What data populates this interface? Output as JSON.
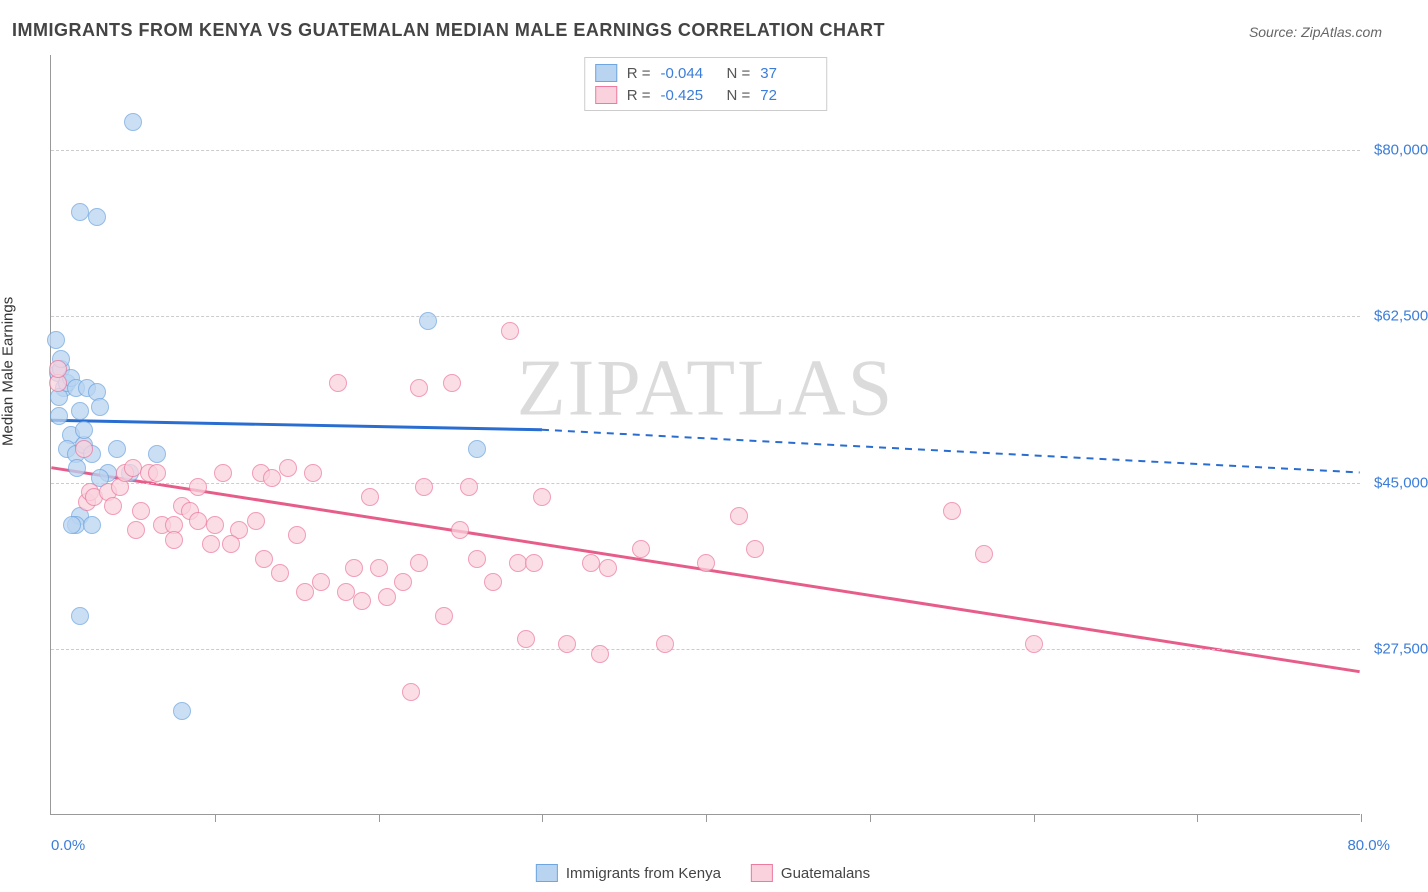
{
  "title": "IMMIGRANTS FROM KENYA VS GUATEMALAN MEDIAN MALE EARNINGS CORRELATION CHART",
  "source": "Source: ZipAtlas.com",
  "watermark": "ZIPATLAS",
  "y_axis_title": "Median Male Earnings",
  "chart": {
    "type": "scatter",
    "background_color": "#ffffff",
    "grid_color": "#cccccc",
    "axis_color": "#999999",
    "text_color": "#444444",
    "value_color": "#3b7dd8",
    "xlim": [
      0,
      80
    ],
    "ylim": [
      10000,
      90000
    ],
    "x_tick_step_pct": 10,
    "x_label_min": "0.0%",
    "x_label_max": "80.0%",
    "y_gridlines": [
      {
        "value": 27500,
        "label": "$27,500"
      },
      {
        "value": 45000,
        "label": "$45,000"
      },
      {
        "value": 62500,
        "label": "$62,500"
      },
      {
        "value": 80000,
        "label": "$80,000"
      }
    ],
    "series": [
      {
        "name": "Immigrants from Kenya",
        "fill_color": "#b9d4f1",
        "stroke_color": "#6fa6e0",
        "line_color": "#2a6dd0",
        "r_value": "-0.044",
        "n_value": "37",
        "trend": {
          "x1": 0,
          "y1": 51500,
          "x2": 30,
          "y2": 50500,
          "x2_dash": 80,
          "y2_dash": 46000
        },
        "marker_size": 18,
        "points": [
          {
            "x": 0.4,
            "y": 56500
          },
          {
            "x": 0.6,
            "y": 57000
          },
          {
            "x": 0.8,
            "y": 55000
          },
          {
            "x": 0.5,
            "y": 54000
          },
          {
            "x": 1.0,
            "y": 55500
          },
          {
            "x": 1.2,
            "y": 56000
          },
          {
            "x": 0.5,
            "y": 52000
          },
          {
            "x": 1.5,
            "y": 55000
          },
          {
            "x": 1.8,
            "y": 52500
          },
          {
            "x": 2.2,
            "y": 55000
          },
          {
            "x": 2.8,
            "y": 54500
          },
          {
            "x": 3.0,
            "y": 53000
          },
          {
            "x": 1.2,
            "y": 50000
          },
          {
            "x": 1.0,
            "y": 48500
          },
          {
            "x": 1.5,
            "y": 48000
          },
          {
            "x": 2.0,
            "y": 49000
          },
          {
            "x": 2.5,
            "y": 48000
          },
          {
            "x": 1.6,
            "y": 46500
          },
          {
            "x": 3.5,
            "y": 46000
          },
          {
            "x": 4.0,
            "y": 48500
          },
          {
            "x": 4.8,
            "y": 46000
          },
          {
            "x": 6.5,
            "y": 48000
          },
          {
            "x": 3.0,
            "y": 45500
          },
          {
            "x": 1.8,
            "y": 41500
          },
          {
            "x": 1.5,
            "y": 40500
          },
          {
            "x": 1.3,
            "y": 40500
          },
          {
            "x": 2.5,
            "y": 40500
          },
          {
            "x": 5.0,
            "y": 83000
          },
          {
            "x": 1.8,
            "y": 73500
          },
          {
            "x": 2.8,
            "y": 73000
          },
          {
            "x": 0.3,
            "y": 60000
          },
          {
            "x": 23.0,
            "y": 62000
          },
          {
            "x": 26.0,
            "y": 48500
          },
          {
            "x": 1.8,
            "y": 31000
          },
          {
            "x": 8.0,
            "y": 21000
          },
          {
            "x": 0.6,
            "y": 58000
          },
          {
            "x": 2.0,
            "y": 50500
          }
        ]
      },
      {
        "name": "Guatemalans",
        "fill_color": "#fad2dd",
        "stroke_color": "#ed7ba0",
        "line_color": "#e75d8a",
        "r_value": "-0.425",
        "n_value": "72",
        "trend": {
          "x1": 0,
          "y1": 46500,
          "x2": 80,
          "y2": 25000
        },
        "marker_size": 18,
        "points": [
          {
            "x": 0.4,
            "y": 55500
          },
          {
            "x": 0.4,
            "y": 57000
          },
          {
            "x": 2.0,
            "y": 48500
          },
          {
            "x": 2.2,
            "y": 43000
          },
          {
            "x": 2.4,
            "y": 44000
          },
          {
            "x": 2.6,
            "y": 43500
          },
          {
            "x": 3.5,
            "y": 44000
          },
          {
            "x": 3.8,
            "y": 42500
          },
          {
            "x": 4.2,
            "y": 44500
          },
          {
            "x": 4.5,
            "y": 46000
          },
          {
            "x": 5.0,
            "y": 46500
          },
          {
            "x": 5.5,
            "y": 42000
          },
          {
            "x": 5.2,
            "y": 40000
          },
          {
            "x": 6.0,
            "y": 46000
          },
          {
            "x": 6.5,
            "y": 46000
          },
          {
            "x": 6.8,
            "y": 40500
          },
          {
            "x": 7.5,
            "y": 40500
          },
          {
            "x": 7.5,
            "y": 39000
          },
          {
            "x": 8.0,
            "y": 42500
          },
          {
            "x": 8.5,
            "y": 42000
          },
          {
            "x": 9.0,
            "y": 41000
          },
          {
            "x": 9.0,
            "y": 44500
          },
          {
            "x": 9.8,
            "y": 38500
          },
          {
            "x": 10.0,
            "y": 40500
          },
          {
            "x": 10.5,
            "y": 46000
          },
          {
            "x": 11.5,
            "y": 40000
          },
          {
            "x": 11.0,
            "y": 38500
          },
          {
            "x": 12.5,
            "y": 41000
          },
          {
            "x": 12.8,
            "y": 46000
          },
          {
            "x": 13.0,
            "y": 37000
          },
          {
            "x": 13.5,
            "y": 45500
          },
          {
            "x": 14.0,
            "y": 35500
          },
          {
            "x": 14.5,
            "y": 46500
          },
          {
            "x": 15.0,
            "y": 39500
          },
          {
            "x": 15.5,
            "y": 33500
          },
          {
            "x": 16.0,
            "y": 46000
          },
          {
            "x": 16.5,
            "y": 34500
          },
          {
            "x": 17.5,
            "y": 55500
          },
          {
            "x": 18.0,
            "y": 33500
          },
          {
            "x": 18.5,
            "y": 36000
          },
          {
            "x": 19.5,
            "y": 43500
          },
          {
            "x": 19.0,
            "y": 32500
          },
          {
            "x": 20.0,
            "y": 36000
          },
          {
            "x": 20.5,
            "y": 33000
          },
          {
            "x": 21.5,
            "y": 34500
          },
          {
            "x": 22.0,
            "y": 23000
          },
          {
            "x": 22.5,
            "y": 36500
          },
          {
            "x": 22.8,
            "y": 44500
          },
          {
            "x": 22.5,
            "y": 55000
          },
          {
            "x": 24.0,
            "y": 31000
          },
          {
            "x": 24.5,
            "y": 55500
          },
          {
            "x": 25.0,
            "y": 40000
          },
          {
            "x": 25.5,
            "y": 44500
          },
          {
            "x": 26.0,
            "y": 37000
          },
          {
            "x": 27.0,
            "y": 34500
          },
          {
            "x": 28.0,
            "y": 61000
          },
          {
            "x": 28.5,
            "y": 36500
          },
          {
            "x": 29.0,
            "y": 28500
          },
          {
            "x": 29.5,
            "y": 36500
          },
          {
            "x": 30.0,
            "y": 43500
          },
          {
            "x": 31.5,
            "y": 28000
          },
          {
            "x": 33.5,
            "y": 27000
          },
          {
            "x": 33.0,
            "y": 36500
          },
          {
            "x": 34.0,
            "y": 36000
          },
          {
            "x": 36.0,
            "y": 38000
          },
          {
            "x": 37.5,
            "y": 28000
          },
          {
            "x": 40.0,
            "y": 36500
          },
          {
            "x": 42.0,
            "y": 41500
          },
          {
            "x": 43.0,
            "y": 38000
          },
          {
            "x": 55.0,
            "y": 42000
          },
          {
            "x": 57.0,
            "y": 37500
          },
          {
            "x": 60.0,
            "y": 28000
          }
        ]
      }
    ]
  },
  "legend_bottom": [
    {
      "label": "Immigrants from Kenya",
      "fill": "#b9d4f1",
      "stroke": "#6fa6e0"
    },
    {
      "label": "Guatemalans",
      "fill": "#fad2dd",
      "stroke": "#ed7ba0"
    }
  ]
}
